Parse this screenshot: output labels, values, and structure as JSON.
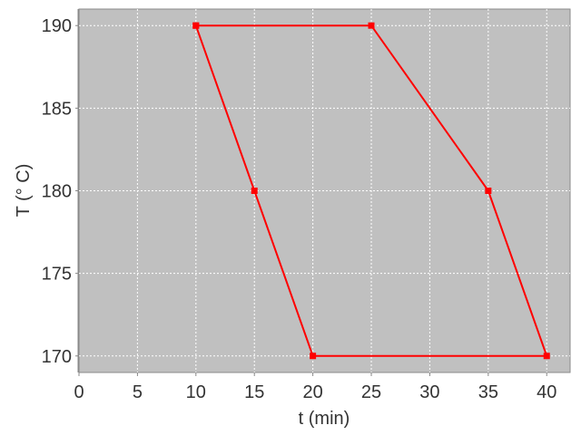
{
  "chart_data": {
    "type": "line",
    "title": "",
    "xlabel": "t (min)",
    "ylabel": "T (° C)",
    "xlim": [
      0,
      42
    ],
    "ylim": [
      169,
      191
    ],
    "xticks": [
      0,
      5,
      10,
      15,
      20,
      25,
      30,
      35,
      40
    ],
    "yticks": [
      170,
      175,
      180,
      185,
      190
    ],
    "grid": true,
    "background_color": "#c0c0c0",
    "series": [
      {
        "color": "#ff0000",
        "marker": "square",
        "x": [
          10,
          25,
          35,
          40,
          20,
          15,
          10
        ],
        "y": [
          190,
          190,
          180,
          170,
          170,
          180,
          190
        ]
      }
    ]
  }
}
